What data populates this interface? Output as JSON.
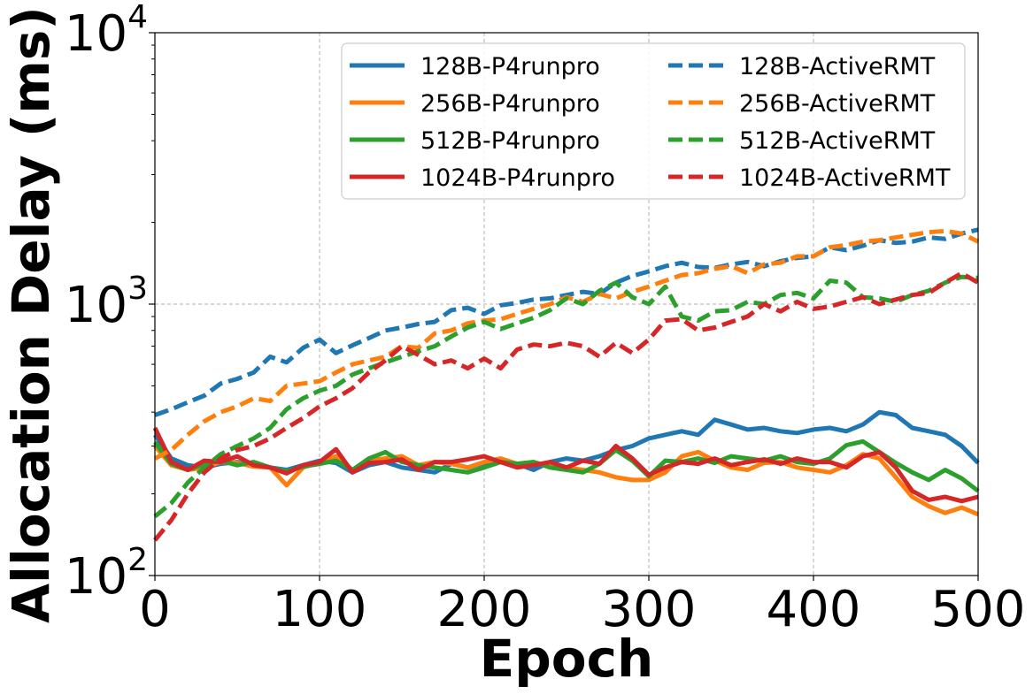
{
  "chart_data": {
    "type": "line",
    "xlabel": "Epoch",
    "ylabel": "Allocation Delay (ms)",
    "xlim": [
      0,
      500
    ],
    "ylim": [
      100,
      10000
    ],
    "yscale": "log",
    "grid": true,
    "legend": {
      "placement": "top-right",
      "columns": 2
    },
    "x_ticks": [
      "0",
      "100",
      "200",
      "300",
      "400",
      "500"
    ],
    "y_ticks": [
      {
        "value": 100,
        "base": "10",
        "exp": "2"
      },
      {
        "value": 1000,
        "base": "10",
        "exp": "3"
      },
      {
        "value": 10000,
        "base": "10",
        "exp": "4"
      }
    ],
    "series": [
      {
        "name": "128B-P4runpro",
        "color": "#1f77b4",
        "style": "solid",
        "x": [
          0,
          10,
          20,
          30,
          40,
          50,
          60,
          70,
          80,
          90,
          100,
          110,
          120,
          130,
          140,
          150,
          160,
          170,
          180,
          190,
          200,
          210,
          220,
          230,
          240,
          250,
          260,
          270,
          280,
          290,
          300,
          310,
          320,
          330,
          340,
          350,
          360,
          370,
          380,
          390,
          400,
          410,
          420,
          430,
          440,
          450,
          460,
          470,
          480,
          490,
          500
        ],
        "y": [
          330,
          270,
          255,
          250,
          258,
          262,
          255,
          250,
          245,
          255,
          265,
          260,
          240,
          255,
          262,
          250,
          245,
          240,
          258,
          250,
          260,
          265,
          258,
          245,
          262,
          270,
          265,
          275,
          290,
          300,
          320,
          330,
          340,
          330,
          375,
          360,
          345,
          350,
          340,
          335,
          345,
          350,
          340,
          360,
          400,
          390,
          350,
          340,
          330,
          300,
          260
        ]
      },
      {
        "name": "256B-P4runpro",
        "color": "#ff7f0e",
        "style": "solid",
        "x": [
          0,
          10,
          20,
          30,
          40,
          50,
          60,
          70,
          80,
          90,
          100,
          110,
          120,
          130,
          140,
          150,
          160,
          170,
          180,
          190,
          200,
          210,
          220,
          230,
          240,
          250,
          260,
          270,
          280,
          290,
          300,
          310,
          320,
          330,
          340,
          350,
          360,
          370,
          380,
          390,
          400,
          410,
          420,
          430,
          440,
          450,
          460,
          470,
          480,
          490,
          500
        ],
        "y": [
          300,
          255,
          245,
          250,
          262,
          260,
          252,
          250,
          215,
          250,
          262,
          275,
          245,
          265,
          270,
          275,
          255,
          262,
          258,
          250,
          262,
          270,
          258,
          262,
          252,
          250,
          245,
          240,
          230,
          225,
          225,
          240,
          275,
          285,
          265,
          250,
          245,
          260,
          262,
          250,
          245,
          240,
          255,
          280,
          270,
          230,
          195,
          180,
          170,
          178,
          168
        ]
      },
      {
        "name": "512B-P4runpro",
        "color": "#2ca02c",
        "style": "solid",
        "x": [
          0,
          10,
          20,
          30,
          40,
          50,
          60,
          70,
          80,
          90,
          100,
          110,
          120,
          130,
          140,
          150,
          160,
          170,
          180,
          190,
          200,
          210,
          220,
          230,
          240,
          250,
          260,
          270,
          280,
          290,
          300,
          310,
          320,
          330,
          340,
          350,
          360,
          370,
          380,
          390,
          400,
          410,
          420,
          430,
          440,
          450,
          460,
          470,
          480,
          490,
          500
        ],
        "y": [
          310,
          258,
          245,
          258,
          265,
          255,
          262,
          250,
          242,
          252,
          258,
          265,
          245,
          270,
          285,
          262,
          255,
          250,
          245,
          240,
          250,
          262,
          258,
          262,
          250,
          245,
          240,
          258,
          290,
          265,
          232,
          265,
          262,
          270,
          260,
          275,
          270,
          265,
          275,
          262,
          258,
          270,
          302,
          312,
          285,
          260,
          240,
          225,
          245,
          228,
          205
        ]
      },
      {
        "name": "1024B-P4runpro",
        "color": "#d62728",
        "style": "solid",
        "x": [
          0,
          10,
          20,
          30,
          40,
          50,
          60,
          70,
          80,
          90,
          100,
          110,
          120,
          130,
          140,
          150,
          160,
          170,
          180,
          190,
          200,
          210,
          220,
          230,
          240,
          250,
          260,
          270,
          280,
          290,
          300,
          310,
          320,
          330,
          340,
          350,
          360,
          370,
          380,
          390,
          400,
          410,
          420,
          430,
          440,
          450,
          460,
          470,
          480,
          490,
          500
        ],
        "y": [
          350,
          262,
          245,
          265,
          262,
          275,
          255,
          250,
          238,
          255,
          262,
          292,
          240,
          260,
          262,
          268,
          245,
          262,
          262,
          268,
          275,
          262,
          250,
          255,
          262,
          250,
          265,
          258,
          300,
          270,
          235,
          250,
          262,
          258,
          270,
          255,
          262,
          268,
          258,
          270,
          262,
          262,
          250,
          275,
          285,
          250,
          205,
          190,
          195,
          188,
          195
        ]
      },
      {
        "name": "128B-ActiveRMT",
        "color": "#1f77b4",
        "style": "dashed",
        "x": [
          0,
          10,
          20,
          30,
          40,
          50,
          60,
          70,
          80,
          90,
          100,
          110,
          120,
          130,
          140,
          150,
          160,
          170,
          180,
          190,
          200,
          210,
          220,
          230,
          240,
          250,
          260,
          270,
          280,
          290,
          300,
          310,
          320,
          330,
          340,
          350,
          360,
          370,
          380,
          390,
          400,
          410,
          420,
          430,
          440,
          450,
          460,
          470,
          480,
          490,
          500
        ],
        "y": [
          390,
          410,
          435,
          460,
          510,
          530,
          560,
          640,
          610,
          690,
          740,
          660,
          705,
          750,
          800,
          820,
          845,
          860,
          950,
          970,
          920,
          990,
          1010,
          1040,
          1050,
          1080,
          1110,
          1090,
          1200,
          1270,
          1320,
          1380,
          1420,
          1370,
          1360,
          1400,
          1430,
          1380,
          1440,
          1480,
          1500,
          1620,
          1580,
          1640,
          1720,
          1680,
          1700,
          1760,
          1740,
          1820,
          1880
        ]
      },
      {
        "name": "256B-ActiveRMT",
        "color": "#ff7f0e",
        "style": "dashed",
        "x": [
          0,
          10,
          20,
          30,
          40,
          50,
          60,
          70,
          80,
          90,
          100,
          110,
          120,
          130,
          140,
          150,
          160,
          170,
          180,
          190,
          200,
          210,
          220,
          230,
          240,
          250,
          260,
          270,
          280,
          290,
          300,
          310,
          320,
          330,
          340,
          350,
          360,
          370,
          380,
          390,
          400,
          410,
          420,
          430,
          440,
          450,
          460,
          470,
          480,
          490,
          500
        ],
        "y": [
          270,
          290,
          330,
          370,
          400,
          420,
          450,
          440,
          500,
          510,
          520,
          560,
          600,
          620,
          640,
          700,
          690,
          780,
          800,
          850,
          870,
          880,
          920,
          960,
          1000,
          1060,
          1020,
          1090,
          1050,
          1110,
          1160,
          1220,
          1280,
          1300,
          1350,
          1380,
          1300,
          1400,
          1420,
          1500,
          1500,
          1620,
          1650,
          1700,
          1720,
          1760,
          1800,
          1840,
          1860,
          1820,
          1700
        ]
      },
      {
        "name": "512B-ActiveRMT",
        "color": "#2ca02c",
        "style": "dashed",
        "x": [
          0,
          10,
          20,
          30,
          40,
          50,
          60,
          70,
          80,
          90,
          100,
          110,
          120,
          130,
          140,
          150,
          160,
          170,
          180,
          190,
          200,
          210,
          220,
          230,
          240,
          250,
          260,
          270,
          280,
          290,
          300,
          310,
          320,
          330,
          340,
          350,
          360,
          370,
          380,
          390,
          400,
          410,
          420,
          430,
          440,
          450,
          460,
          470,
          480,
          490,
          500
        ],
        "y": [
          165,
          185,
          220,
          250,
          280,
          300,
          320,
          350,
          410,
          450,
          480,
          500,
          550,
          580,
          610,
          640,
          670,
          700,
          760,
          820,
          860,
          810,
          850,
          890,
          950,
          1050,
          1000,
          1120,
          1200,
          1060,
          1000,
          1160,
          900,
          870,
          940,
          950,
          1020,
          1000,
          1080,
          1100,
          1050,
          1220,
          1200,
          1060,
          1050,
          1020,
          1080,
          1120,
          1200,
          1260,
          1250
        ]
      },
      {
        "name": "1024B-ActiveRMT",
        "color": "#d62728",
        "style": "dashed",
        "x": [
          0,
          10,
          20,
          30,
          40,
          50,
          60,
          70,
          80,
          90,
          100,
          110,
          120,
          130,
          140,
          150,
          160,
          170,
          180,
          190,
          200,
          210,
          220,
          230,
          240,
          250,
          260,
          270,
          280,
          290,
          300,
          310,
          320,
          330,
          340,
          350,
          360,
          370,
          380,
          390,
          400,
          410,
          420,
          430,
          440,
          450,
          460,
          470,
          480,
          490,
          500
        ],
        "y": [
          135,
          160,
          200,
          240,
          270,
          290,
          300,
          320,
          350,
          380,
          420,
          450,
          490,
          560,
          620,
          700,
          650,
          600,
          620,
          580,
          630,
          580,
          680,
          710,
          700,
          720,
          700,
          640,
          720,
          660,
          740,
          870,
          880,
          800,
          820,
          860,
          900,
          1000,
          940,
          1020,
          960,
          980,
          1020,
          1060,
          1000,
          1040,
          1080,
          1100,
          1200,
          1300,
          1200
        ]
      }
    ]
  }
}
